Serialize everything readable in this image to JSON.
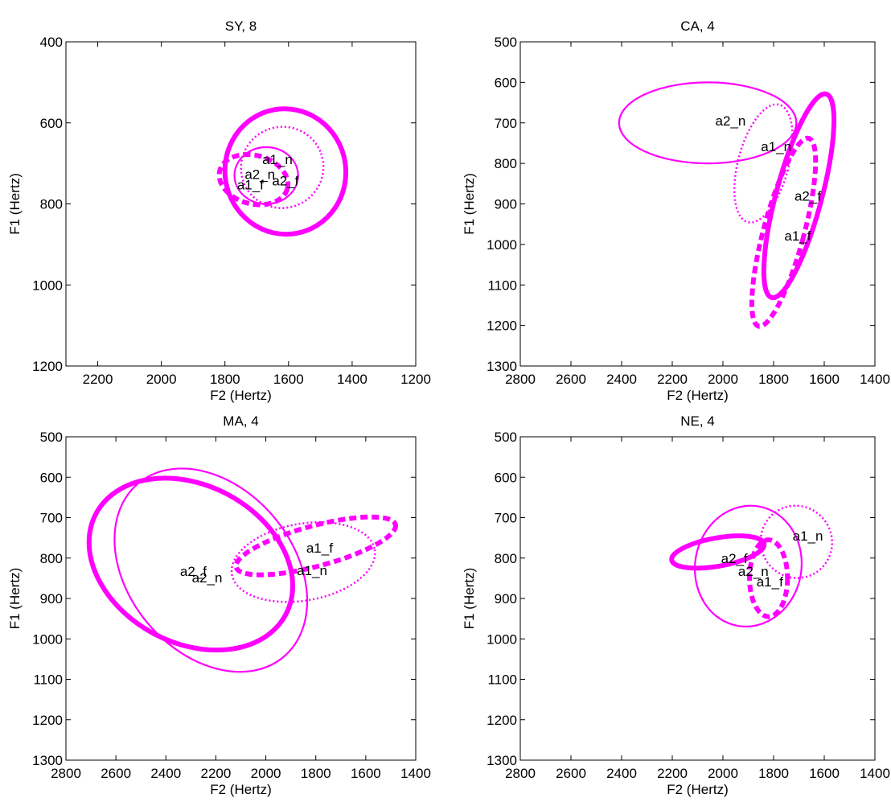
{
  "chart_data": [
    {
      "type": "scatter",
      "title": "SY, 8",
      "xlabel": "F2 (Hertz)",
      "ylabel": "F1 (Hertz)",
      "xlim": [
        2300,
        1200
      ],
      "ylim": [
        1200,
        400
      ],
      "x_reversed": true,
      "y_reversed": true,
      "xticks": [
        2200,
        2000,
        1800,
        1600,
        1400,
        1200
      ],
      "yticks": [
        400,
        600,
        800,
        1000,
        1200
      ],
      "color": "#ff00ff",
      "ellipses": [
        {
          "label": "a1_n",
          "style": "dotted",
          "cx": 1620,
          "cy": 710,
          "rx": 130,
          "ry": 100,
          "angle": -20
        },
        {
          "label": "a1_f",
          "style": "dashed",
          "cx": 1710,
          "cy": 740,
          "rx": 110,
          "ry": 60,
          "angle": 15
        },
        {
          "label": "a2_n",
          "style": "thin",
          "cx": 1670,
          "cy": 730,
          "rx": 100,
          "ry": 70,
          "angle": 0
        },
        {
          "label": "a2_f",
          "style": "thick",
          "cx": 1610,
          "cy": 720,
          "rx": 190,
          "ry": 155,
          "angle": -10
        }
      ],
      "labels": [
        {
          "text": "a1_n",
          "x": 1635,
          "y": 690
        },
        {
          "text": "a2_n",
          "x": 1690,
          "y": 727
        },
        {
          "text": "a1_f",
          "x": 1720,
          "y": 752
        },
        {
          "text": "a2_f",
          "x": 1610,
          "y": 742
        }
      ]
    },
    {
      "type": "scatter",
      "title": "CA, 4",
      "xlabel": "F2 (Hertz)",
      "ylabel": "F1 (Hertz)",
      "xlim": [
        2800,
        1400
      ],
      "ylim": [
        1300,
        500
      ],
      "x_reversed": true,
      "y_reversed": true,
      "xticks": [
        2800,
        2600,
        2400,
        2200,
        2000,
        1800,
        1600,
        1400
      ],
      "yticks": [
        500,
        600,
        700,
        800,
        900,
        1000,
        1100,
        1200,
        1300
      ],
      "color": "#ff00ff",
      "ellipses": [
        {
          "label": "a2_n",
          "style": "thin",
          "cx": 2060,
          "cy": 700,
          "rx": 350,
          "ry": 100,
          "angle": 0
        },
        {
          "label": "a1_n",
          "style": "dotted",
          "cx": 1840,
          "cy": 800,
          "rx": 100,
          "ry": 150,
          "angle": 15
        },
        {
          "label": "a2_f",
          "style": "thick",
          "cx": 1700,
          "cy": 880,
          "rx": 90,
          "ry": 260,
          "angle": 15
        },
        {
          "label": "a1_f",
          "style": "dashed",
          "cx": 1760,
          "cy": 970,
          "rx": 80,
          "ry": 240,
          "angle": 15
        }
      ],
      "labels": [
        {
          "text": "a2_n",
          "x": 1970,
          "y": 695
        },
        {
          "text": "a1_n",
          "x": 1790,
          "y": 758
        },
        {
          "text": "a2_f",
          "x": 1665,
          "y": 880
        },
        {
          "text": "a1_f",
          "x": 1705,
          "y": 978
        }
      ]
    },
    {
      "type": "scatter",
      "title": "MA, 4",
      "xlabel": "F2 (Hertz)",
      "ylabel": "F1 (Hertz)",
      "xlim": [
        2800,
        1400
      ],
      "ylim": [
        1300,
        500
      ],
      "x_reversed": true,
      "y_reversed": true,
      "xticks": [
        2800,
        2600,
        2400,
        2200,
        2000,
        1800,
        1600,
        1400
      ],
      "yticks": [
        500,
        600,
        700,
        800,
        900,
        1000,
        1100,
        1200,
        1300
      ],
      "color": "#ff00ff",
      "ellipses": [
        {
          "label": "a2_f",
          "style": "thick",
          "cx": 2300,
          "cy": 815,
          "rx": 430,
          "ry": 195,
          "angle": 28
        },
        {
          "label": "a2_n",
          "style": "thin",
          "cx": 2220,
          "cy": 830,
          "rx": 330,
          "ry": 280,
          "angle": -40
        },
        {
          "label": "a1_n",
          "style": "dotted",
          "cx": 1850,
          "cy": 810,
          "rx": 290,
          "ry": 95,
          "angle": -10
        },
        {
          "label": "a1_f",
          "style": "dashed",
          "cx": 1800,
          "cy": 770,
          "rx": 330,
          "ry": 50,
          "angle": -15
        }
      ],
      "labels": [
        {
          "text": "a2_f",
          "x": 2290,
          "y": 832
        },
        {
          "text": "a2_n",
          "x": 2235,
          "y": 848
        },
        {
          "text": "a1_f",
          "x": 1785,
          "y": 775
        },
        {
          "text": "a1_n",
          "x": 1815,
          "y": 830
        }
      ]
    },
    {
      "type": "scatter",
      "title": "NE, 4",
      "xlabel": "F2 (Hertz)",
      "ylabel": "F1 (Hertz)",
      "xlim": [
        2800,
        1400
      ],
      "ylim": [
        1300,
        500
      ],
      "x_reversed": true,
      "y_reversed": true,
      "xticks": [
        2800,
        2600,
        2400,
        2200,
        2000,
        1800,
        1600,
        1400
      ],
      "yticks": [
        500,
        600,
        700,
        800,
        900,
        1000,
        1100,
        1200,
        1300
      ],
      "color": "#ff00ff",
      "ellipses": [
        {
          "label": "a1_n",
          "style": "dotted",
          "cx": 1710,
          "cy": 760,
          "rx": 140,
          "ry": 90,
          "angle": -30
        },
        {
          "label": "a2_n",
          "style": "thin",
          "cx": 1900,
          "cy": 820,
          "rx": 210,
          "ry": 150,
          "angle": 10
        },
        {
          "label": "a2_f",
          "style": "thick",
          "cx": 2020,
          "cy": 785,
          "rx": 185,
          "ry": 35,
          "angle": -10
        },
        {
          "label": "a1_f",
          "style": "dashed",
          "cx": 1820,
          "cy": 850,
          "rx": 75,
          "ry": 95,
          "angle": 0
        }
      ],
      "labels": [
        {
          "text": "a1_n",
          "x": 1665,
          "y": 745
        },
        {
          "text": "a2_f",
          "x": 1955,
          "y": 800
        },
        {
          "text": "a2_n",
          "x": 1880,
          "y": 832
        },
        {
          "text": "a1_f",
          "x": 1815,
          "y": 858
        }
      ]
    }
  ]
}
